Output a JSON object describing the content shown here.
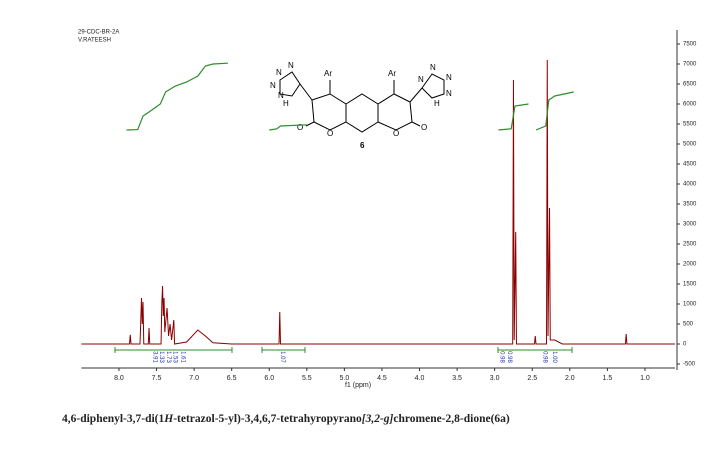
{
  "chart_data": {
    "type": "line",
    "header": [
      "29-CDC-BR-2A",
      "V.RATEESH"
    ],
    "xlabel": "f1 (ppm)",
    "xlim": [
      8.5,
      0.6
    ],
    "ylim": [
      -650,
      7850
    ],
    "xticks": [
      {
        "value": 8,
        "label": "8.0"
      },
      7.5,
      {
        "value": 7,
        "label": "7.0"
      },
      6.5,
      {
        "value": 6,
        "label": "6.0"
      },
      5.5,
      {
        "value": 5,
        "label": "5.0"
      },
      4.5,
      {
        "value": 4,
        "label": "4.0"
      },
      3.5,
      {
        "value": 3,
        "label": "3.0"
      },
      2.5,
      {
        "value": 2,
        "label": "2.0"
      },
      1.5,
      {
        "value": 1,
        "label": "1.0"
      }
    ],
    "yticks": [
      -500,
      0,
      500,
      1000,
      1500,
      2000,
      2500,
      3000,
      3500,
      4000,
      4500,
      5000,
      5500,
      6000,
      6500,
      7000,
      7500
    ],
    "series": [
      {
        "color": "#8b0000",
        "x": [
          8.5,
          7.86,
          7.85,
          7.84,
          7.72,
          7.7,
          7.69,
          7.68,
          7.67,
          7.61,
          7.6,
          7.59,
          7.44,
          7.43,
          7.42,
          7.41,
          7.4,
          7.39,
          7.36,
          7.34,
          7.32,
          7.3,
          7.27,
          7.26,
          7.1,
          6.95,
          6.85,
          6.75,
          6.5,
          5.87,
          5.86,
          5.85,
          3.5,
          2.76,
          2.75,
          2.74,
          2.72,
          2.71,
          2.47,
          2.46,
          2.45,
          2.31,
          2.3,
          2.29,
          2.27,
          2.26,
          2.2,
          2.1,
          1.26,
          1.25,
          1.24,
          0.6
        ],
        "values": [
          0,
          0,
          230,
          0,
          0,
          1150,
          500,
          1050,
          0,
          0,
          400,
          0,
          0,
          1000,
          1450,
          700,
          1150,
          300,
          900,
          200,
          500,
          100,
          600,
          0,
          50,
          350,
          200,
          30,
          0,
          0,
          800,
          0,
          0,
          0,
          6600,
          100,
          2800,
          0,
          0,
          200,
          0,
          0,
          7100,
          200,
          3400,
          100,
          100,
          0,
          0,
          250,
          0,
          0
        ]
      },
      {
        "color": "#2e8b2e",
        "x": [
          7.9,
          7.75,
          7.68,
          7.6,
          7.45,
          7.38,
          7.25,
          7.1,
          6.95,
          6.85,
          6.75,
          6.55,
          6.2,
          6.0,
          5.9,
          5.85,
          5.5,
          3.2,
          2.95,
          2.78,
          2.73,
          2.55,
          2.5,
          2.45,
          2.32,
          2.28,
          2.2,
          1.95
        ],
        "values": [
          5350,
          5360,
          5700,
          5800,
          6000,
          6300,
          6450,
          6550,
          6700,
          6950,
          7000,
          7020,
          null,
          5350,
          5380,
          5450,
          5480,
          null,
          5350,
          5380,
          5950,
          6000,
          null,
          5350,
          5450,
          6100,
          6200,
          6300
        ]
      }
    ],
    "integrals": [
      {
        "ppm": 7.52,
        "label": "3.91"
      },
      {
        "ppm": 7.43,
        "label": "1.33"
      },
      {
        "ppm": 7.34,
        "label": "1.73"
      },
      {
        "ppm": 7.25,
        "label": "1.53"
      },
      {
        "ppm": 7.15,
        "label": "1.61"
      },
      {
        "ppm": 5.82,
        "label": "1.07"
      },
      {
        "ppm": 2.9,
        "label": "0.98"
      },
      {
        "ppm": 2.8,
        "label": "0.98"
      },
      {
        "ppm": 2.33,
        "label": "0.98"
      },
      {
        "ppm": 2.2,
        "label": "1.00"
      }
    ],
    "structure": [
      "N",
      "N",
      "N",
      "N",
      "H",
      "Ar",
      "Ar",
      "N",
      "N",
      "N",
      "N",
      "H",
      "O",
      "O",
      "O",
      "O",
      "6"
    ],
    "caption": [
      "4,6-diphenyl-3,7-di(1",
      "H",
      "-tetrazol-5-yl)-3,4,6,7-tetrahyropyrano",
      "[3,2-g]",
      "chromene-2,8-dione(6a)"
    ]
  }
}
